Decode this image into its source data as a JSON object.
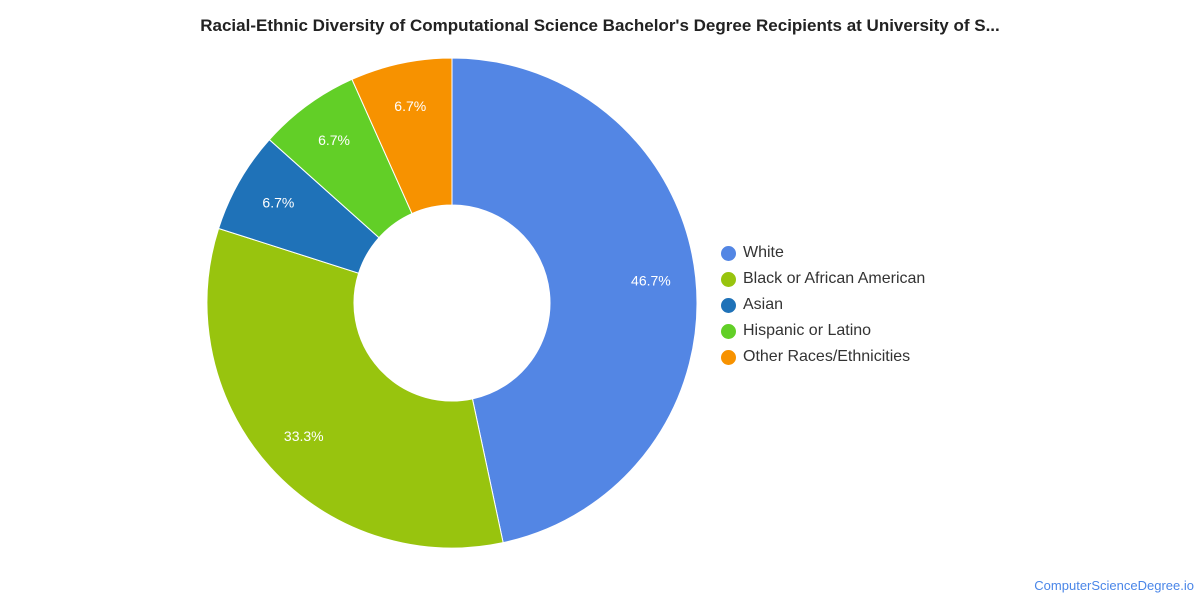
{
  "chart_data": {
    "type": "pie",
    "title": "Racial-Ethnic Diversity of Computational Science Bachelor's Degree Recipients at University of S...",
    "donut": true,
    "legend_position": "right",
    "series": [
      {
        "name": "White",
        "value": 46.7,
        "label": "46.7%",
        "color": "#5386e4"
      },
      {
        "name": "Black or African American",
        "value": 33.3,
        "label": "33.3%",
        "color": "#98c40e"
      },
      {
        "name": "Asian",
        "value": 6.7,
        "label": "6.7%",
        "color": "#1f72b8"
      },
      {
        "name": "Hispanic or Latino",
        "value": 6.7,
        "label": "6.7%",
        "color": "#62cf27"
      },
      {
        "name": "Other Races/Ethnicities",
        "value": 6.7,
        "label": "6.7%",
        "color": "#f79200"
      }
    ]
  },
  "footer": {
    "source": "ComputerScienceDegree.io"
  }
}
